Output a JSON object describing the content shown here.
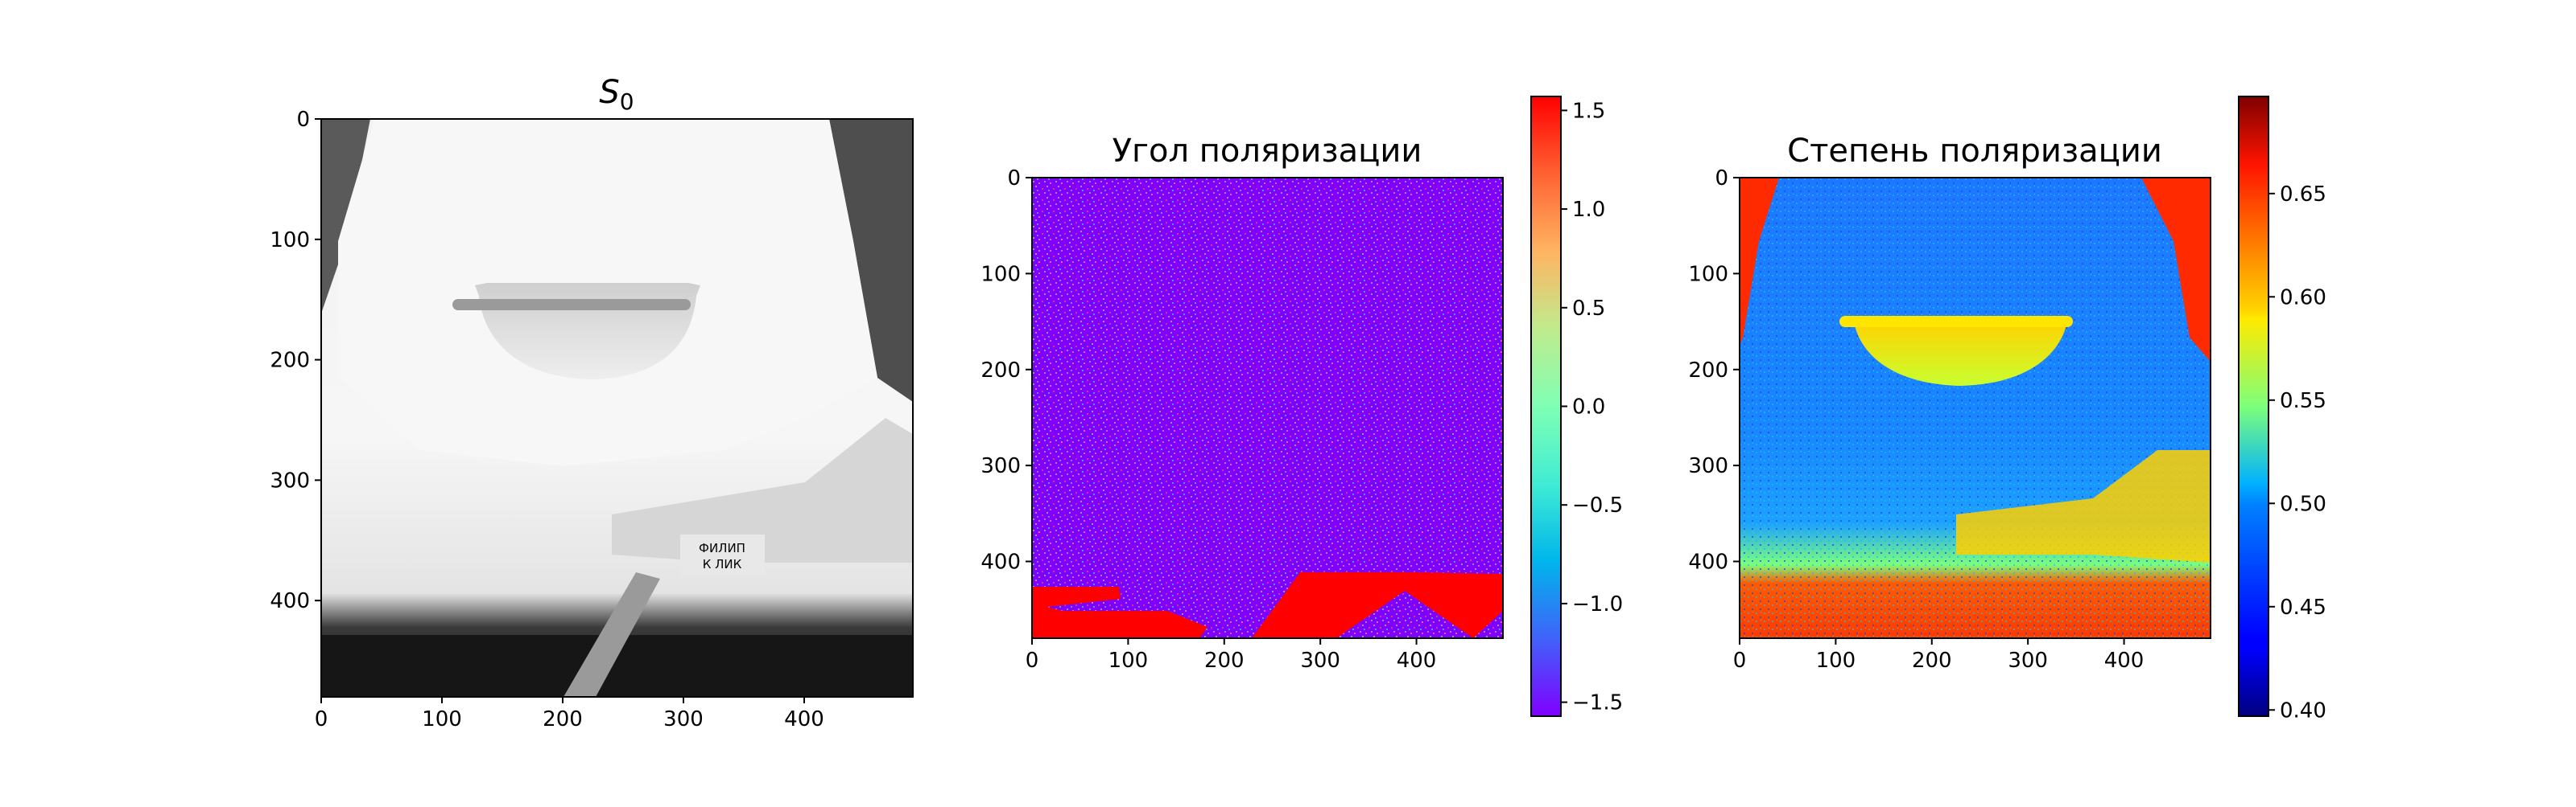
{
  "chart_data": [
    {
      "type": "heatmap",
      "title": "S",
      "title_subscript": "0",
      "colormap": "gray",
      "xlim": [
        0,
        490
      ],
      "ylim": [
        480,
        0
      ],
      "xticks": [
        0,
        100,
        200,
        300,
        400
      ],
      "yticks": [
        0,
        100,
        200,
        300,
        400
      ],
      "image_text": [
        "ФИЛИП",
        "К ЛИК"
      ]
    },
    {
      "type": "heatmap",
      "title": "Угол поляризации",
      "colormap": "rainbow",
      "xlim": [
        0,
        490
      ],
      "ylim": [
        480,
        0
      ],
      "xticks": [
        0,
        100,
        200,
        300,
        400
      ],
      "yticks": [
        0,
        100,
        200,
        300,
        400
      ],
      "colorbar": {
        "range": [
          -1.5708,
          1.5708
        ],
        "ticks": [
          1.5,
          1.0,
          0.5,
          0.0,
          -0.5,
          -1.0,
          -1.5
        ],
        "tick_labels": [
          "1.5",
          "1.0",
          "0.5",
          "0.0",
          "−0.5",
          "−1.0",
          "−1.5"
        ]
      }
    },
    {
      "type": "heatmap",
      "title": "Степень поляризации",
      "colormap": "jet",
      "xlim": [
        0,
        490
      ],
      "ylim": [
        480,
        0
      ],
      "xticks": [
        0,
        100,
        200,
        300,
        400
      ],
      "yticks": [
        0,
        100,
        200,
        300,
        400
      ],
      "colorbar": {
        "range": [
          0.397,
          0.697
        ],
        "ticks": [
          0.65,
          0.6,
          0.55,
          0.5,
          0.45,
          0.4
        ],
        "tick_labels": [
          "0.65",
          "0.60",
          "0.55",
          "0.50",
          "0.45",
          "0.40"
        ]
      }
    }
  ],
  "colors": {
    "violet": "#8000ff",
    "red": "#ff0000",
    "jet_blue": "#1e8cff",
    "jet_red": "#ff3000"
  }
}
